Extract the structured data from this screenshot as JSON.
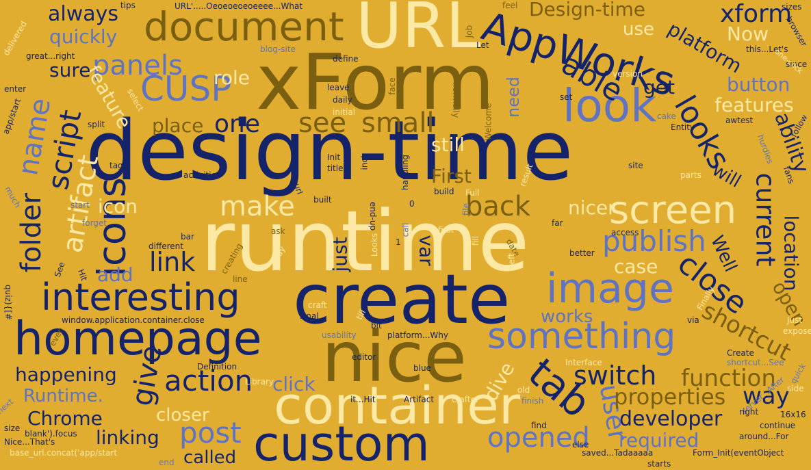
{
  "palette": {
    "background": "#e0ad31",
    "navy": "#15236b",
    "gold": "#7a5f10",
    "cream": "#fce9a6",
    "blue": "#5f73c2"
  },
  "words": [
    {
      "text": "design-time",
      "color": "navy"
    },
    {
      "text": "runtime",
      "color": "cream"
    },
    {
      "text": "xForm",
      "color": "gold"
    },
    {
      "text": "create",
      "color": "navy"
    },
    {
      "text": "nice",
      "color": "gold"
    },
    {
      "text": "URL",
      "color": "cream"
    },
    {
      "text": "container",
      "color": "cream"
    },
    {
      "text": "homepage",
      "color": "navy"
    },
    {
      "text": "custom",
      "color": "navy"
    },
    {
      "text": "AppWorks",
      "color": "navy"
    },
    {
      "text": "look",
      "color": "blue"
    },
    {
      "text": "document",
      "color": "gold"
    },
    {
      "text": "image",
      "color": "blue"
    },
    {
      "text": "something",
      "color": "blue"
    },
    {
      "text": "screen",
      "color": "cream"
    },
    {
      "text": "interesting",
      "color": "navy"
    },
    {
      "text": "icons",
      "color": "navy"
    },
    {
      "text": "tab",
      "color": "navy"
    },
    {
      "text": "CUSP",
      "color": "blue"
    },
    {
      "text": "small",
      "color": "gold"
    },
    {
      "text": "see",
      "color": "gold"
    },
    {
      "text": "one",
      "color": "navy"
    },
    {
      "text": "looks",
      "color": "navy"
    },
    {
      "text": "able",
      "color": "navy"
    },
    {
      "text": "publish",
      "color": "blue"
    },
    {
      "text": "close",
      "color": "navy"
    },
    {
      "text": "switch",
      "color": "navy"
    },
    {
      "text": "action",
      "color": "navy"
    },
    {
      "text": "post",
      "color": "blue"
    },
    {
      "text": "opened",
      "color": "blue"
    },
    {
      "text": "user",
      "color": "blue"
    },
    {
      "text": "give",
      "color": "navy"
    },
    {
      "text": "make",
      "color": "cream"
    },
    {
      "text": "back",
      "color": "gold"
    },
    {
      "text": "panels",
      "color": "blue"
    },
    {
      "text": "name",
      "color": "blue"
    },
    {
      "text": "script",
      "color": "navy"
    },
    {
      "text": "artifact",
      "color": "cream"
    },
    {
      "text": "folder",
      "color": "navy"
    },
    {
      "text": "current",
      "color": "navy"
    },
    {
      "text": "link",
      "color": "navy"
    },
    {
      "text": "function",
      "color": "gold"
    },
    {
      "text": "properties",
      "color": "gold"
    },
    {
      "text": "developer",
      "color": "navy"
    },
    {
      "text": "way",
      "color": "navy"
    },
    {
      "text": "shortcut",
      "color": "gold"
    },
    {
      "text": "xform",
      "color": "navy"
    },
    {
      "text": "Design-time",
      "color": "gold"
    },
    {
      "text": "always",
      "color": "navy"
    },
    {
      "text": "quickly",
      "color": "blue"
    },
    {
      "text": "platform",
      "color": "navy"
    },
    {
      "text": "Now",
      "color": "cream"
    },
    {
      "text": "use",
      "color": "cream"
    },
    {
      "text": "button",
      "color": "blue"
    },
    {
      "text": "features",
      "color": "cream"
    },
    {
      "text": "feature",
      "color": "cream"
    },
    {
      "text": "sure",
      "color": "navy"
    },
    {
      "text": "role",
      "color": "cream"
    },
    {
      "text": "get",
      "color": "navy"
    },
    {
      "text": "place",
      "color": "gold"
    },
    {
      "text": "ability",
      "color": "navy"
    },
    {
      "text": "still",
      "color": "cream"
    },
    {
      "text": "First",
      "color": "gold"
    },
    {
      "text": "icon",
      "color": "cream"
    },
    {
      "text": "nicer",
      "color": "cream"
    },
    {
      "text": "will",
      "color": "navy"
    },
    {
      "text": "add",
      "color": "blue"
    },
    {
      "text": "just",
      "color": "navy"
    },
    {
      "text": "var",
      "color": "navy"
    },
    {
      "text": "case",
      "color": "cream"
    },
    {
      "text": "location",
      "color": "navy"
    },
    {
      "text": "Well",
      "color": "navy"
    },
    {
      "text": "open",
      "color": "gold"
    },
    {
      "text": "works",
      "color": "blue"
    },
    {
      "text": "happening",
      "color": "navy"
    },
    {
      "text": "Runtime.",
      "color": "blue"
    },
    {
      "text": "click",
      "color": "blue"
    },
    {
      "text": "dive",
      "color": "cream"
    },
    {
      "text": "Chrome",
      "color": "navy"
    },
    {
      "text": "closer",
      "color": "cream"
    },
    {
      "text": "linking",
      "color": "navy"
    },
    {
      "text": "called",
      "color": "navy"
    },
    {
      "text": "required",
      "color": "blue"
    },
    {
      "text": "need",
      "color": "blue"
    },
    {
      "text": "tips",
      "color": "navy"
    },
    {
      "text": "URL'.....Oeoeoeoeoeeee...What",
      "color": "navy"
    },
    {
      "text": "feel",
      "color": "gold"
    },
    {
      "text": "sizes",
      "color": "navy"
    },
    {
      "text": "browser",
      "color": "navy"
    },
    {
      "text": "delivered",
      "color": "cream"
    },
    {
      "text": "great...right",
      "color": "navy"
    },
    {
      "text": "blog-site",
      "color": "blue"
    },
    {
      "text": "Job",
      "color": "gold"
    },
    {
      "text": "Let",
      "color": "navy"
    },
    {
      "text": "this...Let's",
      "color": "navy"
    },
    {
      "text": "since",
      "color": "navy"
    },
    {
      "text": "one-click",
      "color": "cream"
    },
    {
      "text": "define",
      "color": "navy"
    },
    {
      "text": "version",
      "color": "cream"
    },
    {
      "text": "enter",
      "color": "navy"
    },
    {
      "text": "leave",
      "color": "navy"
    },
    {
      "text": "face",
      "color": "gold"
    },
    {
      "text": "normally",
      "color": "gold"
    },
    {
      "text": "set",
      "color": "navy"
    },
    {
      "text": "app/start",
      "color": "navy"
    },
    {
      "text": "select",
      "color": "cream"
    },
    {
      "text": "daily",
      "color": "navy"
    },
    {
      "text": "initial",
      "color": "cream"
    },
    {
      "text": "Welcome",
      "color": "gold"
    },
    {
      "text": "cake",
      "color": "blue"
    },
    {
      "text": "awtest",
      "color": "navy"
    },
    {
      "text": "follow",
      "color": "navy"
    },
    {
      "text": "split",
      "color": "navy"
    },
    {
      "text": "Entity",
      "color": "navy"
    },
    {
      "text": "hurdles",
      "color": "blue"
    },
    {
      "text": "tags",
      "color": "navy"
    },
    {
      "text": "Init",
      "color": "navy"
    },
    {
      "text": "title",
      "color": "navy"
    },
    {
      "text": "incl",
      "color": "navy"
    },
    {
      "text": "handling",
      "color": "navy"
    },
    {
      "text": "site",
      "color": "navy"
    },
    {
      "text": "activities",
      "color": "navy"
    },
    {
      "text": "result",
      "color": "cream"
    },
    {
      "text": "parts",
      "color": "cream"
    },
    {
      "text": "fans",
      "color": "navy"
    },
    {
      "text": "url",
      "color": "navy"
    },
    {
      "text": "start",
      "color": "blue"
    },
    {
      "text": "build",
      "color": "navy"
    },
    {
      "text": "Full",
      "color": "cream"
    },
    {
      "text": "much",
      "color": "blue"
    },
    {
      "text": "built",
      "color": "navy"
    },
    {
      "text": "0",
      "color": "navy"
    },
    {
      "text": "file",
      "color": "blue"
    },
    {
      "text": "end-up",
      "color": "navy"
    },
    {
      "text": "forget",
      "color": "blue"
    },
    {
      "text": "first",
      "color": "cream"
    },
    {
      "text": "call",
      "color": "blue"
    },
    {
      "text": "far",
      "color": "navy"
    },
    {
      "text": "ask",
      "color": "gold"
    },
    {
      "text": "bar",
      "color": "navy"
    },
    {
      "text": "access",
      "color": "navy"
    },
    {
      "text": "Looks",
      "color": "cream"
    },
    {
      "text": "different",
      "color": "navy"
    },
    {
      "text": "1",
      "color": "navy"
    },
    {
      "text": "fill",
      "color": "cream"
    },
    {
      "text": "date",
      "color": "gold"
    },
    {
      "text": "say",
      "color": "cream"
    },
    {
      "text": "better",
      "color": "navy"
    },
    {
      "text": "left",
      "color": "cream"
    },
    {
      "text": "Hit",
      "color": "navy"
    },
    {
      "text": "creating",
      "color": "gold"
    },
    {
      "text": "line",
      "color": "gold"
    },
    {
      "text": "quiz){[#",
      "color": "navy"
    },
    {
      "text": "See",
      "color": "navy"
    },
    {
      "text": "window.application.container.close",
      "color": "navy"
    },
    {
      "text": "craft",
      "color": "cream"
    },
    {
      "text": "Final",
      "color": "navy"
    },
    {
      "text": "till",
      "color": "cream"
    },
    {
      "text": "via",
      "color": "navy"
    },
    {
      "text": "Finally",
      "color": "cream"
    },
    {
      "text": "Just",
      "color": "cream"
    },
    {
      "text": "expose",
      "color": "cream"
    },
    {
      "text": "even",
      "color": "gold"
    },
    {
      "text": "usability",
      "color": "blue"
    },
    {
      "text": "platform...Why",
      "color": "navy"
    },
    {
      "text": "bit",
      "color": "navy"
    },
    {
      "text": "Create",
      "color": "navy"
    },
    {
      "text": "Interface",
      "color": "cream"
    },
    {
      "text": "shortcut...See",
      "color": "blue"
    },
    {
      "text": "quick",
      "color": "blue"
    },
    {
      "text": "editor",
      "color": "navy"
    },
    {
      "text": "Definition",
      "color": "navy"
    },
    {
      "text": "Library",
      "color": "cream"
    },
    {
      "text": "blue",
      "color": "navy"
    },
    {
      "text": "old",
      "color": "cream"
    },
    {
      "text": "finish",
      "color": "blue"
    },
    {
      "text": "server...After",
      "color": "blue"
    },
    {
      "text": "side",
      "color": "cream"
    },
    {
      "text": "next",
      "color": "blue"
    },
    {
      "text": "it...Hit",
      "color": "navy"
    },
    {
      "text": "Artifact",
      "color": "navy"
    },
    {
      "text": "crafter",
      "color": "cream"
    },
    {
      "text": "find",
      "color": "navy"
    },
    {
      "text": "right",
      "color": "navy"
    },
    {
      "text": "16x16",
      "color": "navy"
    },
    {
      "text": "size",
      "color": "navy"
    },
    {
      "text": "Nice...That's",
      "color": "navy"
    },
    {
      "text": "blank').focus",
      "color": "navy"
    },
    {
      "text": "continue",
      "color": "navy"
    },
    {
      "text": "around...For",
      "color": "navy"
    },
    {
      "text": "base_url.concat('app/start",
      "color": "cream"
    },
    {
      "text": "end",
      "color": "blue"
    },
    {
      "text": "else",
      "color": "navy"
    },
    {
      "text": "saved...Tadaaaaa",
      "color": "navy"
    },
    {
      "text": "starts",
      "color": "navy"
    },
    {
      "text": "Form_Init(eventObject",
      "color": "navy"
    }
  ]
}
